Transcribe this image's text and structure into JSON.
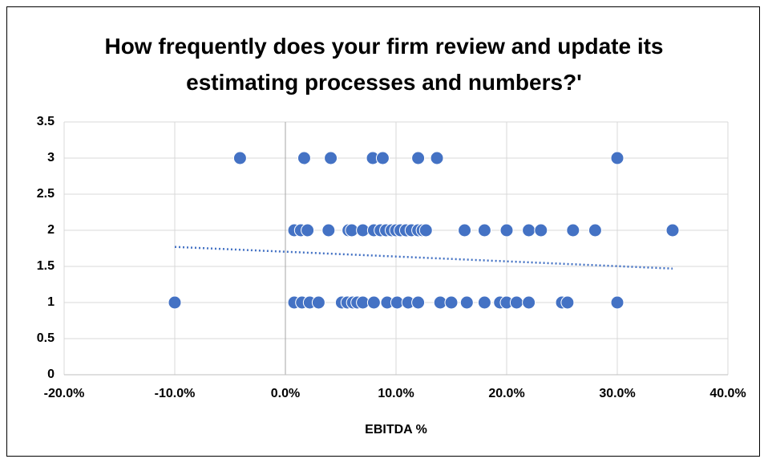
{
  "chart_data": {
    "type": "scatter",
    "title": "How frequently does your firm review and update its estimating processes and numbers?'",
    "xlabel": "EBITDA %",
    "color": "#4472c4",
    "x": [
      -4.1,
      1.7,
      4.1,
      7.9,
      8.8,
      12.0,
      13.7,
      30.0,
      0.8,
      1.4,
      2.0,
      3.9,
      5.7,
      6.0,
      7.0,
      8.0,
      8.6,
      9.1,
      9.6,
      10.0,
      10.4,
      10.9,
      11.4,
      12.0,
      12.4,
      12.7,
      16.2,
      18.0,
      20.0,
      22.0,
      23.1,
      26.0,
      28.0,
      35.0,
      -10.0,
      0.8,
      1.5,
      2.2,
      3.0,
      5.1,
      5.6,
      6.1,
      6.5,
      7.0,
      8.0,
      9.2,
      10.1,
      11.1,
      12.0,
      14.0,
      15.0,
      16.4,
      18.0,
      19.4,
      20.0,
      20.9,
      22.0,
      25.0,
      25.5,
      30.0
    ],
    "values": [
      3,
      3,
      3,
      3,
      3,
      3,
      3,
      3,
      2,
      2,
      2,
      2,
      2,
      2,
      2,
      2,
      2,
      2,
      2,
      2,
      2,
      2,
      2,
      2,
      2,
      2,
      2,
      2,
      2,
      2,
      2,
      2,
      2,
      2,
      1,
      1,
      1,
      1,
      1,
      1,
      1,
      1,
      1,
      1,
      1,
      1,
      1,
      1,
      1,
      1,
      1,
      1,
      1,
      1,
      1,
      1,
      1,
      1,
      1,
      1
    ],
    "trendline": {
      "x": [
        -10,
        35
      ],
      "values": [
        1.77,
        1.47
      ],
      "color": "#4472c4"
    },
    "xlim": [
      -20,
      40
    ],
    "xticks": [
      {
        "value": -20,
        "label": "-20.0%"
      },
      {
        "value": -10,
        "label": "-10.0%"
      },
      {
        "value": 0,
        "label": "0.0%"
      },
      {
        "value": 10,
        "label": "10.0%"
      },
      {
        "value": 20,
        "label": "20.0%"
      },
      {
        "value": 30,
        "label": "30.0%"
      },
      {
        "value": 40,
        "label": "40.0%"
      }
    ],
    "ylim": [
      0,
      3.5
    ],
    "yticks": [
      0,
      0.5,
      1,
      1.5,
      2,
      2.5,
      3,
      3.5
    ],
    "grid": true
  }
}
